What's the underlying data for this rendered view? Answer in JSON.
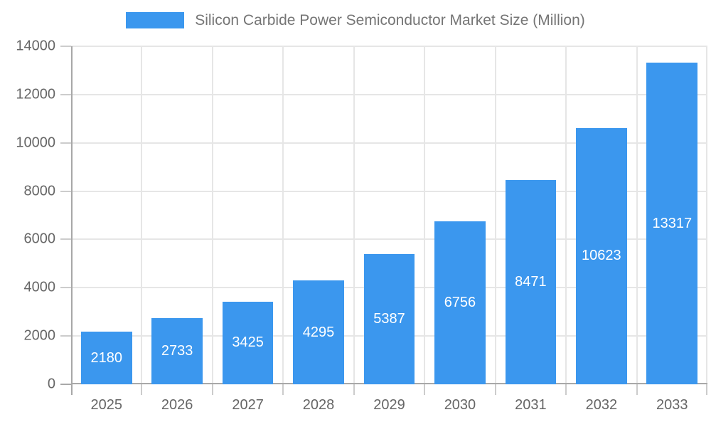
{
  "chart_data": {
    "type": "bar",
    "title": "Silicon Carbide Power Semiconductor Market Size (Million)",
    "legend": {
      "position": "top",
      "label": "Silicon Carbide Power Semiconductor Market Size (Million)"
    },
    "categories": [
      "2025",
      "2026",
      "2027",
      "2028",
      "2029",
      "2030",
      "2031",
      "2032",
      "2033"
    ],
    "values": [
      2180,
      2733,
      3425,
      4295,
      5387,
      6756,
      8471,
      10623,
      13317
    ],
    "xlabel": "",
    "ylabel": "",
    "ylim": [
      0,
      14000
    ],
    "ytick_step": 2000,
    "ytick_labels": [
      "0",
      "2000",
      "4000",
      "6000",
      "8000",
      "10000",
      "12000",
      "14000"
    ],
    "grid": true,
    "bar_labels_shown": true,
    "colors": {
      "bar": "#3b97ee",
      "bar_label": "#ffffff",
      "axis_line": "#a8a8a8",
      "gridline": "#e6e6e6",
      "tick": "#cccccc",
      "axis_label": "#666666",
      "legend_text": "#757575",
      "background": "#ffffff"
    }
  }
}
